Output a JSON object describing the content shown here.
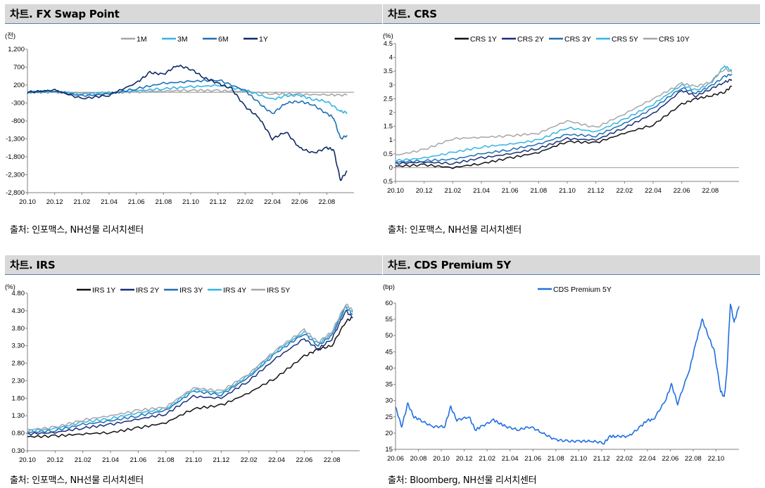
{
  "panels": {
    "fx": {
      "title": "차트. FX Swap Point",
      "source": "출처: 인포맥스, NH선물 리서치센터"
    },
    "crs": {
      "title": "차트. CRS",
      "source": "출처: 인포맥스, NH선물 리서치센터"
    },
    "irs": {
      "title": "차트. IRS",
      "source": "출처: 인포맥스, NH선물 리서치센터"
    },
    "cds": {
      "title": "차트. CDS Premium 5Y",
      "source": "출처: Bloomberg, NH선물 리서치센터"
    }
  },
  "chart_data": [
    {
      "id": "fx",
      "type": "line",
      "unit_label": "(전)",
      "ylim": [
        -2800,
        1200
      ],
      "yticks": [
        "1,200",
        "700",
        "200",
        "-300",
        "-800",
        "-1,300",
        "-1,800",
        "-2,300",
        "-2,800"
      ],
      "ytick_values": [
        1200,
        700,
        200,
        -300,
        -800,
        -1300,
        -1800,
        -2300,
        -2800
      ],
      "xticks": [
        "20.10",
        "20.12",
        "21.02",
        "21.04",
        "21.06",
        "21.08",
        "21.10",
        "21.12",
        "22.02",
        "22.04",
        "22.06",
        "22.08"
      ],
      "xlim_index": [
        0,
        24
      ],
      "grid": false,
      "legend_position": "top-right",
      "series": [
        {
          "name": "1M",
          "color": "#a6a6a6",
          "width": 1.6,
          "x": [
            0,
            2,
            4,
            6,
            8,
            10,
            12,
            14,
            16,
            18,
            20,
            22,
            23.5
          ],
          "y": [
            0,
            0,
            -20,
            -10,
            10,
            30,
            60,
            40,
            20,
            -40,
            -60,
            -70,
            -80
          ]
        },
        {
          "name": "3M",
          "color": "#33b5e5",
          "width": 1.6,
          "x": [
            0,
            2,
            4,
            6,
            8,
            10,
            12,
            14,
            16,
            18,
            19,
            20,
            21,
            22,
            23,
            23.5
          ],
          "y": [
            0,
            20,
            -50,
            -20,
            40,
            100,
            150,
            190,
            60,
            -200,
            -100,
            -80,
            -200,
            -250,
            -530,
            -570
          ]
        },
        {
          "name": "6M",
          "color": "#1f6fb4",
          "width": 1.6,
          "x": [
            0,
            2,
            4,
            6,
            8,
            10,
            12,
            14,
            16,
            17,
            18,
            19,
            20,
            21,
            22,
            22.5,
            23,
            23.5
          ],
          "y": [
            0,
            40,
            -100,
            -50,
            100,
            250,
            300,
            350,
            50,
            -300,
            -600,
            -300,
            -250,
            -350,
            -600,
            -700,
            -1300,
            -1200
          ]
        },
        {
          "name": "1Y",
          "color": "#0f2a66",
          "width": 1.6,
          "x": [
            0,
            2,
            4,
            6,
            8,
            9,
            10,
            11,
            12,
            13,
            14,
            15,
            16,
            17,
            18,
            19,
            20,
            21,
            22,
            22.5,
            23,
            23.5
          ],
          "y": [
            0,
            60,
            -180,
            -80,
            260,
            550,
            500,
            750,
            650,
            400,
            250,
            100,
            -400,
            -700,
            -1300,
            -1100,
            -1550,
            -1700,
            -1550,
            -1600,
            -2450,
            -2200
          ]
        }
      ]
    },
    {
      "id": "crs",
      "type": "line",
      "unit_label": "(%)",
      "ylim": [
        -0.5,
        4.5
      ],
      "yticks": [
        "4.5",
        "4",
        "3.5",
        "3",
        "2.5",
        "2",
        "1.5",
        "1",
        "0.5",
        "0",
        "-0.5"
      ],
      "ytick_values": [
        4.5,
        4,
        3.5,
        3,
        2.5,
        2,
        1.5,
        1,
        0.5,
        0,
        -0.5
      ],
      "xticks": [
        "20.10",
        "20.12",
        "21.02",
        "21.04",
        "21.06",
        "21.08",
        "21.10",
        "21.12",
        "22.02",
        "22.04",
        "22.06",
        "22.08"
      ],
      "xlim_index": [
        0,
        24
      ],
      "grid": false,
      "legend_position": "top",
      "series": [
        {
          "name": "CRS 1Y",
          "color": "#111111",
          "width": 1.5,
          "x": [
            0,
            2,
            4,
            6,
            8,
            10,
            12,
            14,
            16,
            18,
            20,
            21,
            22,
            23,
            23.5
          ],
          "y": [
            0.05,
            0.1,
            0,
            0.15,
            0.35,
            0.55,
            0.95,
            0.9,
            1.25,
            1.55,
            2.3,
            2.5,
            2.6,
            2.75,
            2.95
          ]
        },
        {
          "name": "CRS 2Y",
          "color": "#1a2e78",
          "width": 1.5,
          "x": [
            0,
            2,
            4,
            6,
            8,
            10,
            12,
            14,
            16,
            18,
            20,
            21,
            22,
            23,
            23.5
          ],
          "y": [
            0.15,
            0.2,
            0.15,
            0.35,
            0.5,
            0.7,
            1.05,
            1.0,
            1.45,
            1.95,
            2.8,
            2.6,
            2.85,
            3.1,
            3.2
          ]
        },
        {
          "name": "CRS 3Y",
          "color": "#1f6fb4",
          "width": 1.5,
          "x": [
            0,
            2,
            4,
            6,
            8,
            10,
            12,
            14,
            16,
            18,
            20,
            21,
            22,
            23,
            23.5
          ],
          "y": [
            0.2,
            0.25,
            0.3,
            0.5,
            0.65,
            0.85,
            1.2,
            1.15,
            1.6,
            2.15,
            2.9,
            2.7,
            2.95,
            3.3,
            3.4
          ]
        },
        {
          "name": "CRS 5Y",
          "color": "#33b5e5",
          "width": 1.5,
          "x": [
            0,
            2,
            4,
            6,
            8,
            10,
            12,
            14,
            16,
            18,
            20,
            21,
            22,
            23,
            23.5
          ],
          "y": [
            0.25,
            0.35,
            0.55,
            0.75,
            0.85,
            1.0,
            1.45,
            1.3,
            1.75,
            2.3,
            3.0,
            2.8,
            3.05,
            3.7,
            3.5
          ]
        },
        {
          "name": "CRS 10Y",
          "color": "#a6a6a6",
          "width": 1.5,
          "x": [
            0,
            2,
            4,
            6,
            8,
            10,
            12,
            14,
            16,
            18,
            20,
            21,
            22,
            23,
            23.5
          ],
          "y": [
            0.45,
            0.65,
            1.05,
            1.1,
            1.15,
            1.25,
            1.7,
            1.45,
            1.95,
            2.5,
            3.05,
            2.95,
            3.1,
            3.6,
            3.45
          ]
        }
      ]
    },
    {
      "id": "irs",
      "type": "line",
      "unit_label": "(%)",
      "ylim": [
        0.3,
        4.8
      ],
      "yticks": [
        "4.80",
        "4.30",
        "3.80",
        "3.30",
        "2.80",
        "2.30",
        "1.80",
        "1.30",
        "0.80",
        "0.30"
      ],
      "ytick_values": [
        4.8,
        4.3,
        3.8,
        3.3,
        2.8,
        2.3,
        1.8,
        1.3,
        0.8,
        0.3
      ],
      "xticks": [
        "20.10",
        "20.12",
        "21.02",
        "21.04",
        "21.06",
        "21.08",
        "21.10",
        "21.12",
        "22.02",
        "22.04",
        "22.06",
        "22.08"
      ],
      "xlim_index": [
        0,
        24
      ],
      "grid": false,
      "legend_position": "top",
      "series": [
        {
          "name": "IRS 1Y",
          "color": "#111111",
          "width": 1.5,
          "x": [
            0,
            2,
            4,
            6,
            8,
            10,
            12,
            14,
            16,
            18,
            20,
            21,
            22,
            23,
            23.5
          ],
          "y": [
            0.7,
            0.72,
            0.78,
            0.82,
            0.95,
            1.1,
            1.5,
            1.6,
            1.95,
            2.4,
            3.0,
            3.2,
            3.3,
            4.0,
            4.1
          ]
        },
        {
          "name": "IRS 2Y",
          "color": "#1a2e78",
          "width": 1.5,
          "x": [
            0,
            2,
            4,
            6,
            8,
            10,
            12,
            14,
            16,
            18,
            20,
            21,
            22,
            23,
            23.5
          ],
          "y": [
            0.78,
            0.82,
            0.95,
            1.05,
            1.2,
            1.35,
            1.85,
            1.8,
            2.3,
            2.95,
            3.5,
            3.2,
            3.5,
            4.3,
            4.1
          ]
        },
        {
          "name": "IRS 3Y",
          "color": "#1f6fb4",
          "width": 1.5,
          "x": [
            0,
            2,
            4,
            6,
            8,
            10,
            12,
            14,
            16,
            18,
            20,
            21,
            22,
            23,
            23.5
          ],
          "y": [
            0.82,
            0.88,
            1.05,
            1.15,
            1.3,
            1.45,
            2.0,
            1.9,
            2.4,
            3.1,
            3.65,
            3.3,
            3.6,
            4.4,
            4.2
          ]
        },
        {
          "name": "IRS 4Y",
          "color": "#33b5e5",
          "width": 1.5,
          "x": [
            0,
            2,
            4,
            6,
            8,
            10,
            12,
            14,
            16,
            18,
            20,
            21,
            22,
            23,
            23.5
          ],
          "y": [
            0.86,
            0.93,
            1.12,
            1.22,
            1.38,
            1.5,
            2.05,
            1.95,
            2.45,
            3.15,
            3.7,
            3.35,
            3.65,
            4.45,
            4.25
          ]
        },
        {
          "name": "IRS 5Y",
          "color": "#a6a6a6",
          "width": 1.5,
          "x": [
            0,
            2,
            4,
            6,
            8,
            10,
            12,
            14,
            16,
            18,
            20,
            21,
            22,
            23,
            23.5
          ],
          "y": [
            0.9,
            0.97,
            1.18,
            1.3,
            1.45,
            1.55,
            2.1,
            2.0,
            2.5,
            3.2,
            3.75,
            3.4,
            3.7,
            4.5,
            4.3
          ]
        }
      ]
    },
    {
      "id": "cds",
      "type": "line",
      "unit_label": "(bp)",
      "ylim": [
        15,
        60
      ],
      "yticks": [
        "60",
        "55",
        "50",
        "45",
        "40",
        "35",
        "30",
        "25",
        "20",
        "15"
      ],
      "ytick_values": [
        60,
        55,
        50,
        45,
        40,
        35,
        30,
        25,
        20,
        15
      ],
      "xticks": [
        "20.06",
        "20.08",
        "20.10",
        "20.12",
        "21.02",
        "21.04",
        "21.06",
        "21.08",
        "21.10",
        "21.12",
        "22.02",
        "22.04",
        "22.06",
        "22.08",
        "22.10"
      ],
      "xlim_index": [
        0,
        28
      ],
      "grid": false,
      "legend_position": "top",
      "series": [
        {
          "name": "CDS Premium 5Y",
          "color": "#1f6fe0",
          "width": 1.6,
          "x": [
            0,
            0.5,
            1,
            1.5,
            2,
            3,
            4,
            4.5,
            5,
            6,
            6.5,
            7,
            8,
            8.5,
            9,
            10,
            11,
            12,
            13,
            14,
            15,
            16,
            17,
            17.5,
            18,
            19,
            20,
            20.5,
            21,
            22,
            22.5,
            23,
            24,
            24.5,
            25,
            25.5,
            26,
            26.5,
            26.8,
            27,
            27.3,
            27.6,
            28
          ],
          "y": [
            28,
            22,
            29,
            25,
            24,
            22,
            22,
            28,
            24,
            25,
            21,
            22,
            24,
            23,
            22,
            21,
            22,
            20,
            18,
            17.5,
            17.5,
            17.5,
            17,
            19,
            19,
            19,
            22,
            24,
            24,
            30,
            35,
            29,
            40,
            48,
            55,
            50,
            45,
            33,
            31,
            38,
            60,
            54,
            59
          ]
        }
      ]
    }
  ]
}
